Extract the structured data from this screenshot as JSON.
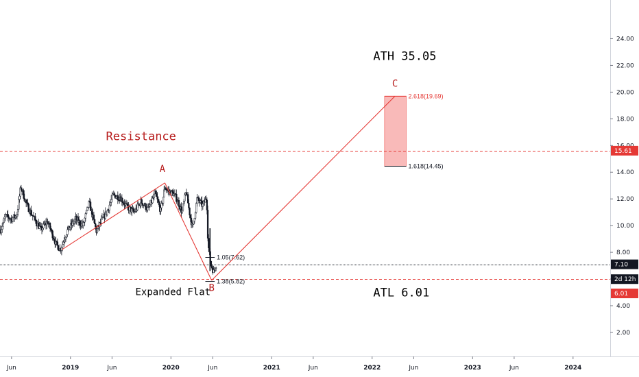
{
  "chart_data": {
    "type": "candlestick",
    "y_axis": {
      "min": 0.2,
      "max": 26.9,
      "ticks": [
        2,
        4,
        6,
        8,
        10,
        12,
        14,
        16,
        18,
        20,
        22,
        24
      ],
      "tick_labels": [
        "2.00",
        "4.00",
        "6.00",
        "8.00",
        "10.00",
        "12.00",
        "14.00",
        "16.00",
        "18.00",
        "20.00",
        "22.00",
        "24.00"
      ]
    },
    "x_axis": {
      "start": "2018-04-20",
      "end": "2024-05-15",
      "ticks": [
        {
          "date": "2018-06-01",
          "label": "Jun",
          "year": false
        },
        {
          "date": "2019-01-01",
          "label": "2019",
          "year": true
        },
        {
          "date": "2019-06-01",
          "label": "Jun",
          "year": false
        },
        {
          "date": "2020-01-01",
          "label": "2020",
          "year": true
        },
        {
          "date": "2020-06-01",
          "label": "Jun",
          "year": false
        },
        {
          "date": "2021-01-01",
          "label": "2021",
          "year": true
        },
        {
          "date": "2021-06-01",
          "label": "Jun",
          "year": false
        },
        {
          "date": "2022-01-01",
          "label": "2022",
          "year": true
        },
        {
          "date": "2022-06-01",
          "label": "Jun",
          "year": false
        },
        {
          "date": "2023-01-01",
          "label": "2023",
          "year": true
        },
        {
          "date": "2023-06-01",
          "label": "Jun",
          "year": false
        },
        {
          "date": "2024-01-01",
          "label": "2024",
          "year": true
        }
      ]
    },
    "price_path": [
      [
        "2018-04-22",
        9.7
      ],
      [
        "2018-05-10",
        10.7
      ],
      [
        "2018-06-01",
        10.5
      ],
      [
        "2018-06-20",
        10.8
      ],
      [
        "2018-07-05",
        12.9
      ],
      [
        "2018-07-25",
        11.6
      ],
      [
        "2018-08-20",
        10.6
      ],
      [
        "2018-09-15",
        9.7
      ],
      [
        "2018-10-10",
        10.3
      ],
      [
        "2018-11-10",
        8.6
      ],
      [
        "2018-11-25",
        8.2
      ],
      [
        "2018-12-20",
        9.6
      ],
      [
        "2019-01-20",
        10.5
      ],
      [
        "2019-02-15",
        10.0
      ],
      [
        "2019-03-10",
        11.7
      ],
      [
        "2019-04-05",
        9.6
      ],
      [
        "2019-04-20",
        10.2
      ],
      [
        "2019-05-15",
        11.1
      ],
      [
        "2019-06-05",
        12.3
      ],
      [
        "2019-07-01",
        12.1
      ],
      [
        "2019-07-25",
        11.4
      ],
      [
        "2019-08-20",
        11.0
      ],
      [
        "2019-09-15",
        11.8
      ],
      [
        "2019-10-10",
        11.2
      ],
      [
        "2019-11-05",
        12.4
      ],
      [
        "2019-11-25",
        11.1
      ],
      [
        "2019-12-10",
        12.9
      ],
      [
        "2019-12-20",
        12.6
      ],
      [
        "2020-01-10",
        12.4
      ],
      [
        "2020-01-25",
        11.9
      ],
      [
        "2020-02-10",
        11.0
      ],
      [
        "2020-02-25",
        12.6
      ],
      [
        "2020-03-10",
        10.8
      ],
      [
        "2020-03-20",
        9.8
      ],
      [
        "2020-04-05",
        12.0
      ],
      [
        "2020-04-25",
        11.5
      ],
      [
        "2020-05-10",
        12.1
      ],
      [
        "2020-05-15",
        8.6
      ],
      [
        "2020-05-25",
        7.1
      ],
      [
        "2020-06-05",
        6.5
      ],
      [
        "2020-06-10",
        7.0
      ],
      [
        "2020-06-15",
        7.1
      ]
    ],
    "wave_lines": [
      {
        "from": [
          "2018-12-01",
          8.2
        ],
        "to": [
          "2019-12-10",
          13.2
        ]
      },
      {
        "from": [
          "2019-12-10",
          13.2
        ],
        "to": [
          "2020-05-28",
          5.9
        ]
      },
      {
        "from": [
          "2020-05-28",
          5.9
        ],
        "to": [
          "2022-03-25",
          19.7
        ]
      }
    ],
    "wave_labels": [
      {
        "text": "A",
        "date": "2019-12-01",
        "price": 14.0
      },
      {
        "text": "B",
        "date": "2020-05-28",
        "price": 5.1
      },
      {
        "text": "C",
        "date": "2022-03-25",
        "price": 20.4
      }
    ],
    "fib_levels": [
      {
        "label": "1.05(7.62)",
        "price": 7.62,
        "date_from": "2020-05-05",
        "date_to": "2020-06-08",
        "color": "#131722"
      },
      {
        "label": "1.38(5.82)",
        "price": 5.82,
        "date_from": "2020-05-05",
        "date_to": "2020-06-08",
        "color": "#131722"
      },
      {
        "label": "2.618(19.69)",
        "price": 19.69,
        "date_from": "2022-02-15",
        "date_to": "2022-05-05",
        "color": "#e53935"
      },
      {
        "label": "1.618(14.45)",
        "price": 14.45,
        "date_from": "2022-02-15",
        "date_to": "2022-05-05",
        "color": "#131722"
      }
    ],
    "target_zone": {
      "date_from": "2022-02-15",
      "date_to": "2022-05-05",
      "price_low": 14.45,
      "price_high": 19.69,
      "color": "#ef5350"
    },
    "horizontal_lines": [
      {
        "price": 15.61,
        "style": "dashed",
        "color": "#e53935"
      },
      {
        "price": 6.01,
        "style": "dashed",
        "color": "#e53935"
      },
      {
        "price": 7.1,
        "style": "dotted",
        "color": "#131722"
      }
    ],
    "annotations": [
      {
        "text": "ATH 35.05",
        "date": "2022-01-05",
        "price": 22.4,
        "style": "big"
      },
      {
        "text": "Resistance",
        "date": "2019-05-10",
        "price": 16.4,
        "style": "red"
      },
      {
        "text": "Expanded Flat",
        "date": "2019-08-25",
        "price": 4.8,
        "style": "mid"
      },
      {
        "text": "ATL 6.01",
        "date": "2022-01-05",
        "price": 4.7,
        "style": "big"
      }
    ],
    "price_badges": [
      {
        "text": "15.61",
        "price": 15.61,
        "color": "#e53935"
      },
      {
        "text": "7.10",
        "price": 7.1,
        "color": "#131722"
      },
      {
        "text": "2d 12h",
        "price": 5.99,
        "color": "#131722"
      },
      {
        "text": "6.01",
        "price": 4.92,
        "color": "#e53935"
      }
    ]
  }
}
